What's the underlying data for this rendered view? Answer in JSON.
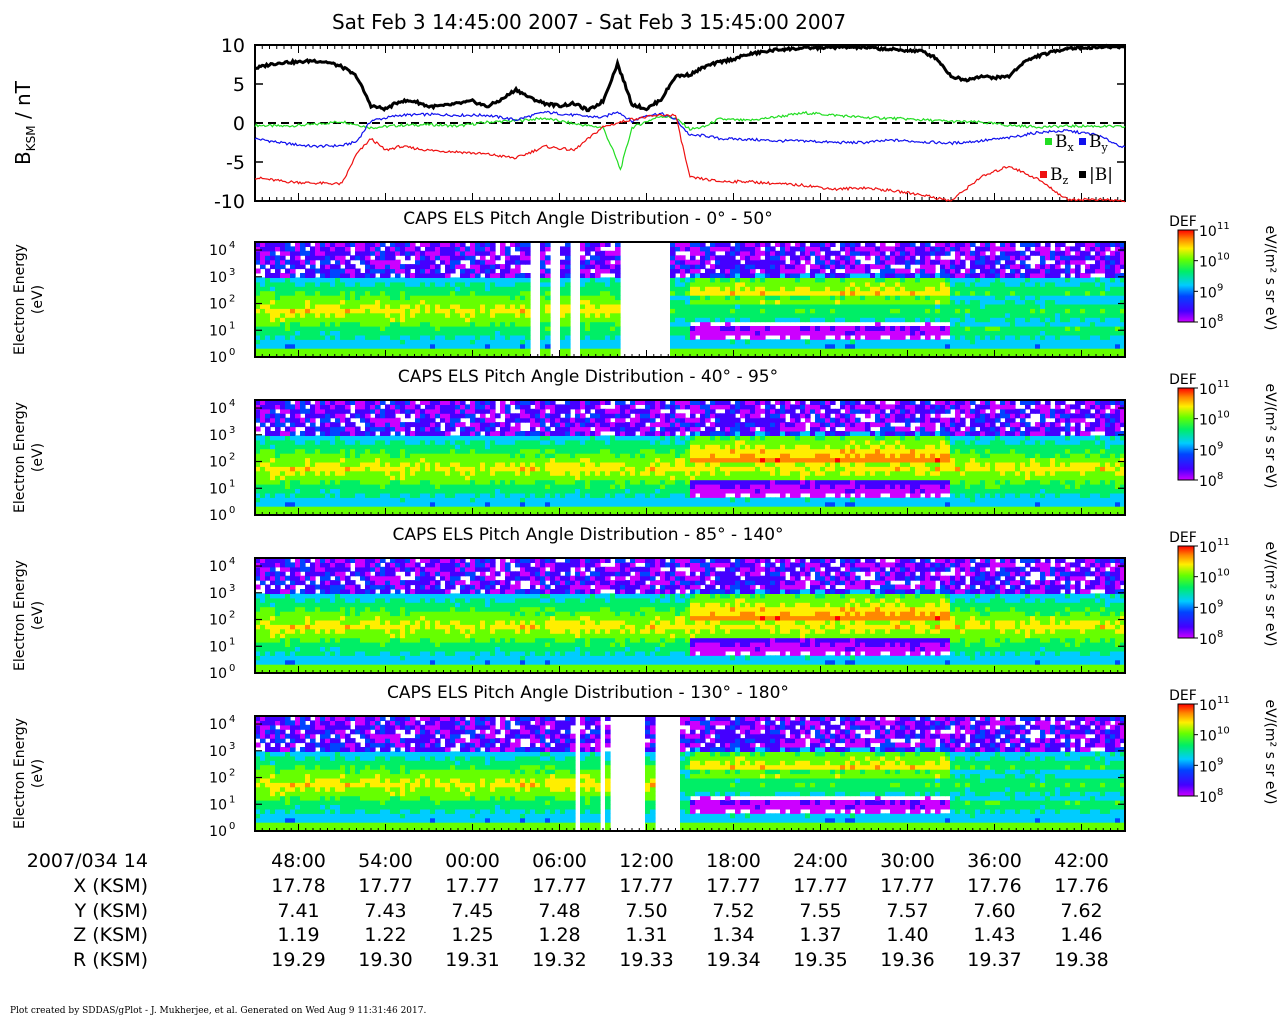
{
  "page_title": "Sat Feb 3 14:45:00 2007 - Sat Feb 3 15:45:00 2007",
  "footer": "Plot created by SDDAS/gPlot - J. Mukherjee, et al.  Generated on Wed Aug 9 11:31:46 2017.",
  "colors": {
    "Bx": "#22dd22",
    "By": "#1010ee",
    "Bz": "#ee1111",
    "B": "#000000"
  },
  "chart_data": [
    {
      "type": "line",
      "ylabel_main": "B",
      "ylabel_sub": "KSM",
      "ylabel_unit": " / nT",
      "ylim": [
        -10,
        10
      ],
      "yticks": [
        10,
        5,
        0,
        -5,
        -10
      ],
      "x_minutes_range": [
        0,
        60
      ],
      "zero_line": true,
      "legend_position": "lower-right",
      "series": [
        {
          "name": "Bx",
          "legend_main": "B",
          "legend_sub": "x",
          "color": "#22dd22",
          "x": [
            0,
            2,
            4,
            6,
            8,
            10,
            12,
            14,
            16,
            18,
            20,
            22,
            24,
            24.8,
            25.2,
            26,
            27,
            28,
            29,
            30,
            31,
            32,
            34,
            36,
            38,
            40,
            42,
            44,
            46,
            48,
            50,
            52,
            54,
            56,
            58,
            60
          ],
          "values": [
            -0.3,
            -0.4,
            -0.2,
            0.2,
            -0.6,
            -0.3,
            -0.2,
            -0.4,
            0.1,
            0.3,
            0.6,
            -0.1,
            -0.6,
            -4,
            -6,
            -0.6,
            0.2,
            0.9,
            0.6,
            -0.8,
            -0.5,
            0.5,
            0.3,
            0.8,
            1.3,
            1.0,
            0.7,
            0.6,
            0.4,
            0.2,
            0.1,
            -0.3,
            -0.5,
            -0.4,
            -0.4,
            -0.5
          ]
        },
        {
          "name": "By",
          "legend_main": "B",
          "legend_sub": "y",
          "color": "#1010ee",
          "x": [
            0,
            2,
            4,
            6,
            7,
            8,
            10,
            12,
            14,
            16,
            18,
            20,
            22,
            24,
            25,
            26,
            27,
            28,
            29,
            30,
            31,
            32,
            34,
            36,
            38,
            40,
            42,
            44,
            46,
            48,
            50,
            52,
            54,
            56,
            58,
            60
          ],
          "values": [
            -2,
            -2.6,
            -3,
            -2.9,
            -2.4,
            0.3,
            1.0,
            1.1,
            1.0,
            1.0,
            0.4,
            1.4,
            1.0,
            0.7,
            1.5,
            0.2,
            1.0,
            1.2,
            0.5,
            -1.6,
            -1.6,
            -2.0,
            -2.1,
            -2.3,
            -2.3,
            -2.5,
            -2.5,
            -2.2,
            -2.4,
            -2.6,
            -2.3,
            -1.9,
            -1.2,
            -1.0,
            -1.5,
            -3.2
          ]
        },
        {
          "name": "Bz",
          "legend_main": "B",
          "legend_sub": "z",
          "color": "#ee1111",
          "x": [
            0,
            2,
            4,
            6,
            7,
            8,
            9,
            10,
            12,
            14,
            16,
            18,
            20,
            22,
            24,
            26,
            28,
            29,
            30,
            31,
            32,
            34,
            36,
            38,
            40,
            42,
            44,
            46,
            48,
            50,
            52,
            54,
            56,
            58,
            60
          ],
          "values": [
            -7,
            -7.5,
            -7.7,
            -7.8,
            -4,
            -2,
            -3.5,
            -3,
            -3.5,
            -3.7,
            -4,
            -4.5,
            -3,
            -3.5,
            -0.5,
            0.5,
            1.0,
            1.0,
            -7,
            -7.2,
            -7.5,
            -7.5,
            -7.8,
            -8,
            -8.5,
            -8.3,
            -8.7,
            -9.2,
            -10,
            -7,
            -5.5,
            -7.2,
            -9.8,
            -9.8,
            -10
          ]
        },
        {
          "name": "|B|",
          "legend_main": "|B|",
          "legend_sub": "",
          "color": "#000000",
          "x": [
            0,
            1,
            2,
            3,
            4,
            5,
            6,
            7,
            8,
            9,
            10,
            11,
            12,
            13,
            14,
            15,
            16,
            17,
            18,
            19,
            20,
            21,
            22,
            23,
            24,
            25,
            26,
            27,
            28,
            29,
            30,
            31,
            32,
            33,
            34,
            36,
            38,
            40,
            42,
            44,
            46,
            47,
            48,
            49,
            50,
            51,
            52,
            53,
            54,
            56,
            58,
            60
          ],
          "values": [
            7,
            7.5,
            7.8,
            7.8,
            8,
            7.8,
            7.2,
            6,
            2.2,
            1.8,
            2.8,
            2.8,
            2.1,
            2.2,
            2.5,
            2.8,
            2.1,
            3,
            4.3,
            3.2,
            2.5,
            2.2,
            2.5,
            1.6,
            2.8,
            7.6,
            2.4,
            1.8,
            3,
            6,
            6.2,
            7.2,
            7.8,
            8.2,
            8.8,
            9.4,
            9.6,
            9.7,
            9.7,
            9.4,
            9.2,
            8.3,
            6,
            5.5,
            6,
            5.8,
            6,
            7.8,
            8.6,
            9.6,
            9.7,
            9.8
          ]
        }
      ]
    },
    {
      "type": "heatmap",
      "title": "CAPS ELS Pitch Angle Distribution - 0° - 50°",
      "ylabel": "Electron Energy",
      "yunit": "(eV)",
      "yscale": "log",
      "ylim": [
        1,
        20000
      ],
      "colorbar": {
        "label": "DEF",
        "unit": "eV/(m² s sr eV)",
        "min": "10^8",
        "max": "10^11",
        "ticks": [
          "11",
          "10",
          "9",
          "8"
        ]
      },
      "gaps_minutes": [
        [
          19.0,
          19.5
        ],
        [
          20.4,
          21.2
        ],
        [
          21.8,
          22.5
        ],
        [
          25.2,
          28.7
        ]
      ],
      "profile": "fieldaligned"
    },
    {
      "type": "heatmap",
      "title": "CAPS ELS Pitch Angle Distribution - 40° - 95°",
      "ylabel": "Electron Energy",
      "yunit": "(eV)",
      "yscale": "log",
      "ylim": [
        1,
        20000
      ],
      "colorbar": {
        "label": "DEF",
        "unit": "eV/(m² s sr eV)",
        "min": "10^8",
        "max": "10^11",
        "ticks": [
          "11",
          "10",
          "9",
          "8"
        ]
      },
      "gaps_minutes": [],
      "profile": "perp"
    },
    {
      "type": "heatmap",
      "title": "CAPS ELS Pitch Angle Distribution - 85° - 140°",
      "ylabel": "Electron Energy",
      "yunit": "(eV)",
      "yscale": "log",
      "ylim": [
        1,
        20000
      ],
      "colorbar": {
        "label": "DEF",
        "unit": "eV/(m² s sr eV)",
        "min": "10^8",
        "max": "10^11",
        "ticks": [
          "11",
          "10",
          "9",
          "8"
        ]
      },
      "gaps_minutes": [],
      "profile": "perp"
    },
    {
      "type": "heatmap",
      "title": "CAPS ELS Pitch Angle Distribution - 130° - 180°",
      "ylabel": "Electron Energy",
      "yunit": "(eV)",
      "yscale": "log",
      "ylim": [
        1,
        20000
      ],
      "colorbar": {
        "label": "DEF",
        "unit": "eV/(m² s sr eV)",
        "min": "10^8",
        "max": "10^11",
        "ticks": [
          "11",
          "10",
          "9",
          "8"
        ]
      },
      "gaps_minutes": [
        [
          22.0,
          22.3
        ],
        [
          22.6,
          22.9
        ],
        [
          23.8,
          24.1
        ],
        [
          24.5,
          26.8
        ],
        [
          27.5,
          29.4
        ]
      ],
      "profile": "fieldaligned"
    }
  ],
  "time_axis": {
    "row_labels": [
      "2007/034 14",
      "X (KSM)",
      "Y (KSM)",
      "Z (KSM)",
      "R (KSM)"
    ],
    "ticks": [
      {
        "minute": 3,
        "label": "48:00",
        "X": "17.78",
        "Y": "7.41",
        "Z": "1.19",
        "R": "19.29"
      },
      {
        "minute": 9,
        "label": "54:00",
        "X": "17.77",
        "Y": "7.43",
        "Z": "1.22",
        "R": "19.30"
      },
      {
        "minute": 15,
        "label": "00:00",
        "X": "17.77",
        "Y": "7.45",
        "Z": "1.25",
        "R": "19.31"
      },
      {
        "minute": 21,
        "label": "06:00",
        "X": "17.77",
        "Y": "7.48",
        "Z": "1.28",
        "R": "19.32"
      },
      {
        "minute": 27,
        "label": "12:00",
        "X": "17.77",
        "Y": "7.50",
        "Z": "1.31",
        "R": "19.33"
      },
      {
        "minute": 33,
        "label": "18:00",
        "X": "17.77",
        "Y": "7.52",
        "Z": "1.34",
        "R": "19.34"
      },
      {
        "minute": 39,
        "label": "24:00",
        "X": "17.77",
        "Y": "7.55",
        "Z": "1.37",
        "R": "19.35"
      },
      {
        "minute": 45,
        "label": "30:00",
        "X": "17.77",
        "Y": "7.57",
        "Z": "1.40",
        "R": "19.36"
      },
      {
        "minute": 51,
        "label": "36:00",
        "X": "17.76",
        "Y": "7.60",
        "Z": "1.43",
        "R": "19.37"
      },
      {
        "minute": 57,
        "label": "42:00",
        "X": "17.76",
        "Y": "7.62",
        "Z": "1.46",
        "R": "19.38"
      }
    ]
  }
}
